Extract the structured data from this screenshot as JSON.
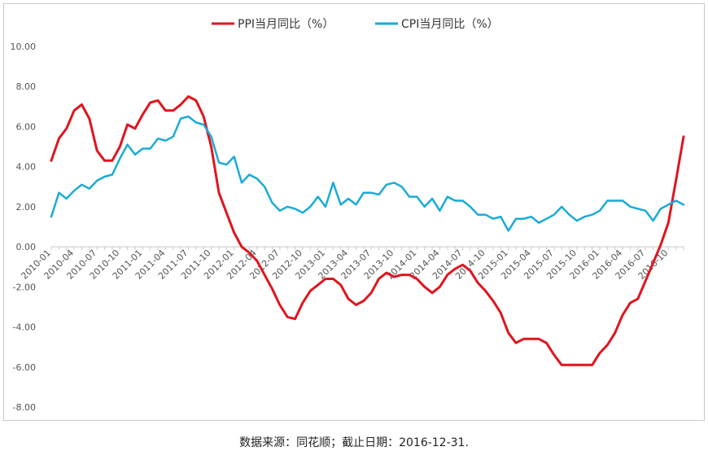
{
  "caption": "数据来源：同花顺；截止日期：2016-12-31.",
  "chart_data": {
    "type": "line",
    "title": "",
    "xlabel": "",
    "ylabel": "",
    "ylim": [
      -8,
      10
    ],
    "yticks": [
      "10.00",
      "8.00",
      "6.00",
      "4.00",
      "2.00",
      "0.00",
      "-2.00",
      "-4.00",
      "-6.00",
      "-8.00"
    ],
    "yticks_values": [
      10,
      8,
      6,
      4,
      2,
      0,
      -2,
      -4,
      -6,
      -8
    ],
    "xtick_labels": [
      "2010-01",
      "2010-04",
      "2010-07",
      "2010-10",
      "2011-01",
      "2011-04",
      "2011-07",
      "2011-10",
      "2012-01",
      "2012-04",
      "2012-07",
      "2012-10",
      "2013-01",
      "2013-04",
      "2013-07",
      "2013-10",
      "2014-01",
      "2014-04",
      "2014-07",
      "2014-10",
      "2015-01",
      "2015-04",
      "2015-07",
      "2015-10",
      "2016-01",
      "2016-04",
      "2016-07",
      "2016-10"
    ],
    "legend_position": "top",
    "grid": false,
    "series": [
      {
        "name": "PPI当月同比（%）",
        "color": "#E0151E",
        "values": [
          4.3,
          5.4,
          5.9,
          6.8,
          7.1,
          6.4,
          4.8,
          4.3,
          4.3,
          5.0,
          6.1,
          5.9,
          6.6,
          7.2,
          7.3,
          6.8,
          6.8,
          7.1,
          7.5,
          7.3,
          6.5,
          5.0,
          2.7,
          1.7,
          0.7,
          0.0,
          -0.3,
          -0.7,
          -1.4,
          -2.1,
          -2.9,
          -3.5,
          -3.6,
          -2.8,
          -2.2,
          -1.9,
          -1.6,
          -1.6,
          -1.9,
          -2.6,
          -2.9,
          -2.7,
          -2.3,
          -1.6,
          -1.3,
          -1.5,
          -1.4,
          -1.4,
          -1.6,
          -2.0,
          -2.3,
          -2.0,
          -1.4,
          -1.1,
          -0.9,
          -1.2,
          -1.8,
          -2.2,
          -2.7,
          -3.3,
          -4.3,
          -4.8,
          -4.6,
          -4.6,
          -4.6,
          -4.8,
          -5.4,
          -5.9,
          -5.9,
          -5.9,
          -5.9,
          -5.9,
          -5.3,
          -4.9,
          -4.3,
          -3.4,
          -2.8,
          -2.6,
          -1.7,
          -0.8,
          0.1,
          1.2,
          3.3,
          5.5
        ]
      },
      {
        "name": "CPI当月同比（%）",
        "color": "#1AABD8",
        "values": [
          1.5,
          2.7,
          2.4,
          2.8,
          3.1,
          2.9,
          3.3,
          3.5,
          3.6,
          4.4,
          5.1,
          4.6,
          4.9,
          4.9,
          5.4,
          5.3,
          5.5,
          6.4,
          6.5,
          6.2,
          6.1,
          5.5,
          4.2,
          4.1,
          4.5,
          3.2,
          3.6,
          3.4,
          3.0,
          2.2,
          1.8,
          2.0,
          1.9,
          1.7,
          2.0,
          2.5,
          2.0,
          3.2,
          2.1,
          2.4,
          2.1,
          2.7,
          2.7,
          2.6,
          3.1,
          3.2,
          3.0,
          2.5,
          2.5,
          2.0,
          2.4,
          1.8,
          2.5,
          2.3,
          2.3,
          2.0,
          1.6,
          1.6,
          1.4,
          1.5,
          0.8,
          1.4,
          1.4,
          1.5,
          1.2,
          1.4,
          1.6,
          2.0,
          1.6,
          1.3,
          1.5,
          1.6,
          1.8,
          2.3,
          2.3,
          2.3,
          2.0,
          1.9,
          1.8,
          1.3,
          1.9,
          2.1,
          2.3,
          2.1
        ]
      }
    ]
  }
}
